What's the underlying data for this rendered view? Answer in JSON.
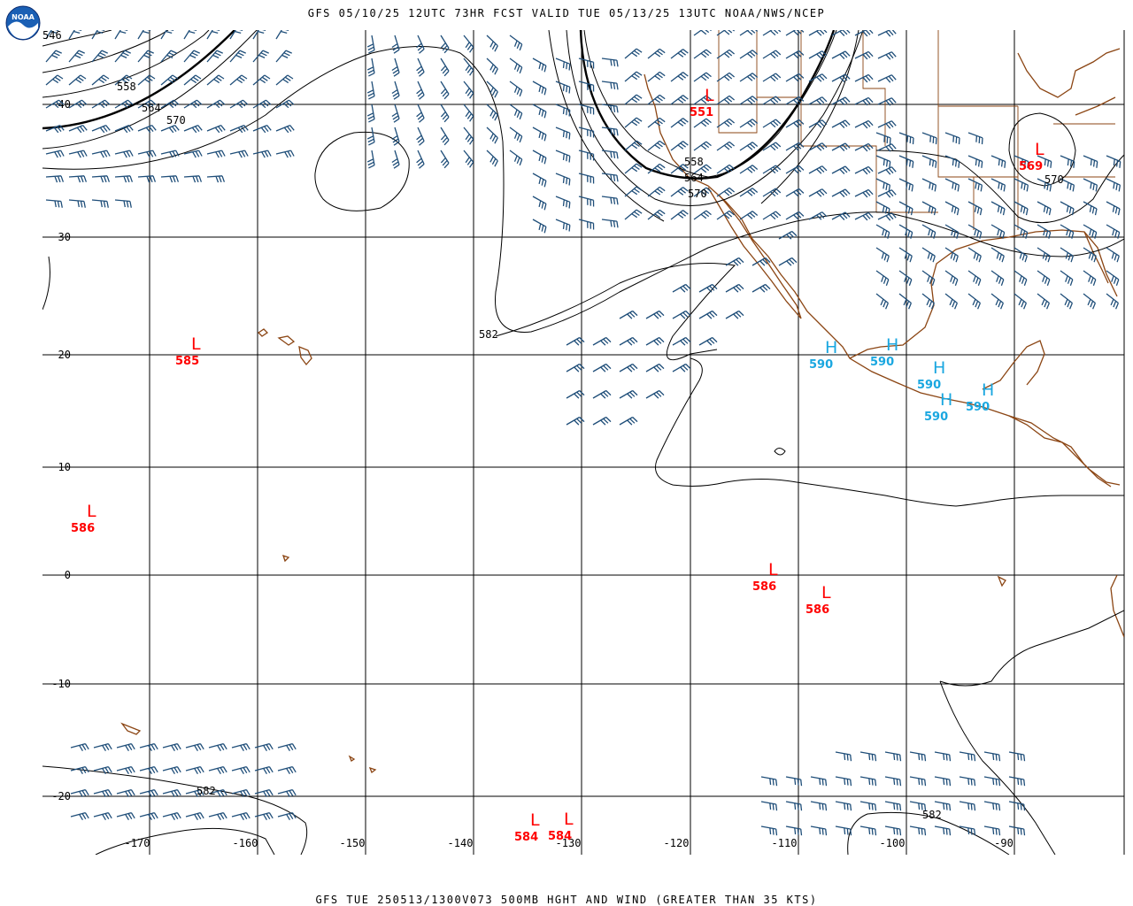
{
  "header": {
    "title": "GFS 05/10/25 12UTC 73HR FCST VALID TUE 05/13/25 13UTC NOAA/NWS/NCEP"
  },
  "footer": {
    "title": "GFS TUE 250513/1300V073 500MB HGHT AND WIND (GREATER THAN 35 KTS)"
  },
  "logo": {
    "text": "NOAA"
  },
  "colors": {
    "contour": "#000000",
    "coast": "#8B4513",
    "barb": "#1f4e79",
    "low": "#ff0000",
    "high": "#1aa7e0",
    "grid": "#000000"
  },
  "map": {
    "lat_labels": [
      "40",
      "30",
      "20",
      "10",
      "0",
      "-10",
      "-20"
    ],
    "lon_labels": [
      "-170",
      "-160",
      "-150",
      "-140",
      "-130",
      "-120",
      "-110",
      "-100",
      "-90"
    ]
  },
  "contour_labels": [
    "546",
    "558",
    "564",
    "570",
    "582",
    "558",
    "564",
    "570",
    "570",
    "582",
    "582"
  ],
  "centers": [
    {
      "type": "L",
      "value": "551"
    },
    {
      "type": "L",
      "value": "569"
    },
    {
      "type": "L",
      "value": "585"
    },
    {
      "type": "L",
      "value": "586"
    },
    {
      "type": "L",
      "value": "586"
    },
    {
      "type": "L",
      "value": "586"
    },
    {
      "type": "L",
      "value": "584"
    },
    {
      "type": "L",
      "value": "584"
    },
    {
      "type": "H",
      "value": "590"
    },
    {
      "type": "H",
      "value": "590"
    },
    {
      "type": "H",
      "value": "590"
    },
    {
      "type": "H",
      "value": "590"
    },
    {
      "type": "H",
      "value": "590"
    }
  ]
}
